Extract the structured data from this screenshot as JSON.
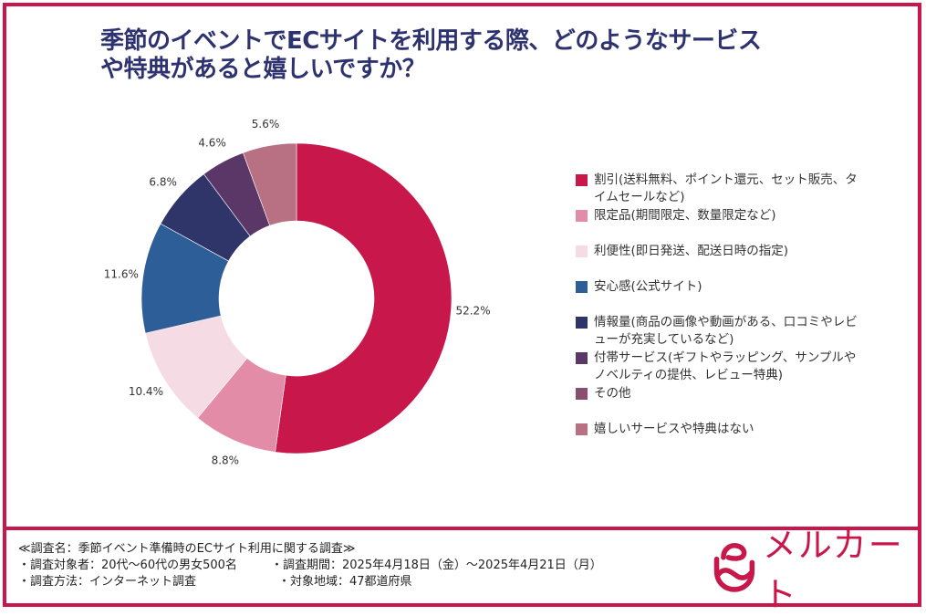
{
  "title": {
    "line1": "季節のイベントでECサイトを利用する際、どのようなサービス",
    "line2": "や特典があると嬉しいですか？"
  },
  "chart_data": {
    "type": "pie",
    "variant": "donut",
    "title": "季節のイベントでECサイトを利用する際、どのようなサービスや特典があると嬉しいですか？",
    "unit": "%",
    "start": "top",
    "direction": "clockwise",
    "legend_position": "right",
    "categories": [
      "割引(送料無料、ポイント還元、セット販売、タイムセールなど)",
      "限定品(期間限定、数量限定など)",
      "利便性(即日発送、配送日時の指定)",
      "安心感(公式サイト)",
      "情報量(商品の画像や動画がある、口コミやレビューが充実しているなど)",
      "付帯サービス(ギフトやラッピング、サンプルやノベルティの提供、レビュー特典)",
      "その他",
      "嬉しいサービスや特典はない"
    ],
    "values": [
      52.2,
      8.8,
      10.4,
      11.6,
      6.8,
      4.6,
      0,
      5.6
    ],
    "labels": [
      "52.2%",
      "8.8%",
      "10.4%",
      "11.6%",
      "6.8%",
      "4.6%",
      "",
      "5.6%"
    ],
    "colors": [
      "#c8174a",
      "#e28ca8",
      "#f5dbe3",
      "#2e5e97",
      "#2f3469",
      "#5b3767",
      "#8a4f6e",
      "#b87083"
    ]
  },
  "footer": {
    "survey_name": "≪調査名：季節イベント準備時のECサイト利用に関する調査≫",
    "target": "・調査対象者：20代〜60代の男女500名",
    "period": "・調査期間：2025年4月18日（金）〜2025年4月21日（月）",
    "method": "・調査方法：インターネット調査",
    "region": "・対象地域：47都道府県"
  },
  "brand": {
    "name": "メルカート",
    "color": "#c8174a"
  }
}
